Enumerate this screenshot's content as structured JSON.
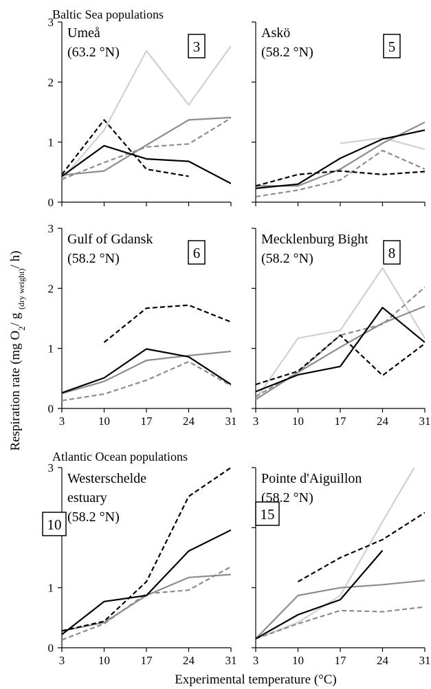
{
  "figure": {
    "group_titles": [
      "Baltic Sea populations",
      "Atlantic Ocean populations"
    ],
    "y_axis_label": {
      "prefix": "Respiration rate (mg O",
      "sub1": "2",
      "mid": "/ g ",
      "sub2": "(dry weight)",
      "suffix": "/ h)"
    },
    "x_axis_label": "Experimental temperature (°C)"
  },
  "style": {
    "series_colors": {
      "black_solid": "#000000",
      "black_dashed": "#000000",
      "gray_solid": "#8c8c8c",
      "gray_dashed": "#8c8c8c",
      "light_gray_solid": "#d0d0d0"
    },
    "dashed_series": [
      "black_dashed",
      "gray_dashed"
    ]
  },
  "chart_data": [
    {
      "type": "line",
      "panel_lines": [
        "Umeå",
        "(63.2 °N)"
      ],
      "box_label": "3",
      "x": [
        3,
        10,
        17,
        24,
        31
      ],
      "xlim": [
        3,
        31
      ],
      "ylim": [
        0,
        3
      ],
      "yticks": [
        0,
        1,
        2,
        3
      ],
      "xticks": [
        "3",
        "10",
        "17",
        "24",
        "31"
      ],
      "show_xticklabels": false,
      "series": [
        {
          "key": "light_gray_solid",
          "values": [
            0.38,
            1.2,
            2.52,
            1.62,
            2.6
          ]
        },
        {
          "key": "gray_solid",
          "values": [
            0.45,
            0.52,
            0.95,
            1.37,
            1.41
          ]
        },
        {
          "key": "gray_dashed",
          "values": [
            0.38,
            0.66,
            0.92,
            0.97,
            1.4
          ]
        },
        {
          "key": "black_dashed",
          "values": [
            0.46,
            1.37,
            0.55,
            0.43,
            null
          ]
        },
        {
          "key": "black_solid",
          "values": [
            0.43,
            0.94,
            0.72,
            0.68,
            0.31
          ]
        }
      ]
    },
    {
      "type": "line",
      "panel_lines": [
        "Askö",
        "(58.2 °N)"
      ],
      "box_label": "5",
      "x": [
        3,
        10,
        17,
        24,
        31
      ],
      "xlim": [
        3,
        31
      ],
      "ylim": [
        0,
        3
      ],
      "yticks": [
        0,
        1,
        2,
        3
      ],
      "xticks": [
        "3",
        "10",
        "17",
        "24",
        "31"
      ],
      "show_xticklabels": false,
      "series": [
        {
          "key": "light_gray_solid",
          "values": [
            null,
            null,
            0.98,
            1.07,
            0.88
          ]
        },
        {
          "key": "gray_solid",
          "values": [
            0.27,
            0.27,
            0.55,
            0.98,
            1.33
          ]
        },
        {
          "key": "gray_dashed",
          "values": [
            0.09,
            0.2,
            0.37,
            0.86,
            0.55
          ]
        },
        {
          "key": "black_dashed",
          "values": [
            0.27,
            0.46,
            0.52,
            0.46,
            0.51
          ]
        },
        {
          "key": "black_solid",
          "values": [
            0.23,
            0.3,
            0.73,
            1.05,
            1.2
          ]
        }
      ]
    },
    {
      "type": "line",
      "panel_lines": [
        "Gulf of Gdansk",
        "(58.2 °N)"
      ],
      "box_label": "6",
      "x": [
        3,
        10,
        17,
        24,
        31
      ],
      "xlim": [
        3,
        31
      ],
      "ylim": [
        0,
        3
      ],
      "yticks": [
        0,
        1,
        2,
        3
      ],
      "xticks": [
        "3",
        "10",
        "17",
        "24",
        "31"
      ],
      "show_xticklabels": true,
      "series": [
        {
          "key": "gray_solid",
          "values": [
            0.25,
            0.45,
            0.8,
            0.88,
            0.95
          ]
        },
        {
          "key": "gray_dashed",
          "values": [
            0.13,
            0.24,
            0.47,
            0.78,
            0.38
          ]
        },
        {
          "key": "black_dashed",
          "values": [
            null,
            1.1,
            1.67,
            1.72,
            1.44
          ]
        },
        {
          "key": "black_solid",
          "values": [
            0.26,
            0.51,
            0.99,
            0.86,
            0.4
          ]
        }
      ]
    },
    {
      "type": "line",
      "panel_lines": [
        "Mecklenburg Bight",
        "(58.2 °N)"
      ],
      "box_label": "8",
      "x": [
        3,
        10,
        17,
        24,
        31
      ],
      "xlim": [
        3,
        31
      ],
      "ylim": [
        0,
        3
      ],
      "yticks": [
        0,
        1,
        2,
        3
      ],
      "xticks": [
        "3",
        "10",
        "17",
        "24",
        "31"
      ],
      "show_xticklabels": true,
      "series": [
        {
          "key": "light_gray_solid",
          "values": [
            0.15,
            1.17,
            1.3,
            2.34,
            1.17
          ]
        },
        {
          "key": "gray_solid",
          "values": [
            0.15,
            0.6,
            1.02,
            1.42,
            1.7
          ]
        },
        {
          "key": "gray_dashed",
          "values": [
            0.2,
            0.6,
            1.22,
            1.4,
            2.02
          ]
        },
        {
          "key": "black_dashed",
          "values": [
            0.4,
            0.62,
            1.22,
            0.55,
            1.08
          ]
        },
        {
          "key": "black_solid",
          "values": [
            0.28,
            0.56,
            0.7,
            1.68,
            1.1
          ]
        }
      ]
    },
    {
      "type": "line",
      "panel_lines": [
        "Westerschelde",
        "estuary",
        "(58.2 °N)"
      ],
      "box_label": "10",
      "x": [
        3,
        10,
        17,
        24,
        31
      ],
      "xlim": [
        3,
        31
      ],
      "ylim": [
        0,
        3
      ],
      "yticks": [
        0,
        1,
        2,
        3
      ],
      "xticks": [
        "3",
        "10",
        "17",
        "24",
        "31"
      ],
      "show_xticklabels": true,
      "series": [
        {
          "key": "gray_solid",
          "values": [
            0.28,
            0.42,
            0.87,
            1.17,
            1.22
          ]
        },
        {
          "key": "gray_dashed",
          "values": [
            0.13,
            0.4,
            0.9,
            0.96,
            1.35
          ]
        },
        {
          "key": "black_dashed",
          "values": [
            0.28,
            0.44,
            1.1,
            2.52,
            3.0
          ]
        },
        {
          "key": "black_solid",
          "values": [
            0.22,
            0.77,
            0.87,
            1.61,
            1.96
          ]
        }
      ]
    },
    {
      "type": "line",
      "panel_lines": [
        "Pointe d'Aiguillon",
        "(58.2 °N)"
      ],
      "box_label": "15",
      "x": [
        3,
        10,
        17,
        24,
        31
      ],
      "xlim": [
        3,
        31
      ],
      "ylim": [
        0,
        3
      ],
      "yticks": [
        0,
        1,
        2,
        3
      ],
      "xticks": [
        "3",
        "10",
        "17",
        "24",
        "31"
      ],
      "show_xticklabels": true,
      "series": [
        {
          "key": "light_gray_solid",
          "values": [
            0.15,
            0.42,
            0.87,
            2.1,
            3.3
          ]
        },
        {
          "key": "gray_solid",
          "values": [
            0.15,
            0.87,
            1.0,
            1.05,
            1.12
          ]
        },
        {
          "key": "gray_dashed",
          "values": [
            0.15,
            0.4,
            0.62,
            0.6,
            0.68
          ]
        },
        {
          "key": "black_dashed",
          "values": [
            null,
            1.1,
            1.5,
            1.8,
            2.25
          ]
        },
        {
          "key": "black_solid",
          "values": [
            0.15,
            0.55,
            0.8,
            1.62,
            null
          ]
        }
      ]
    }
  ]
}
